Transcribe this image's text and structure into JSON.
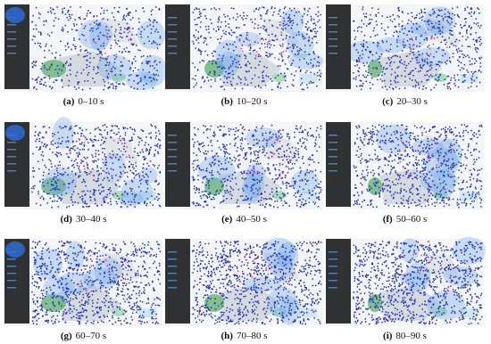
{
  "figure": {
    "panels": [
      {
        "label": "(a)",
        "caption": "0–10 s"
      },
      {
        "label": "(b)",
        "caption": "10–20 s"
      },
      {
        "label": "(c)",
        "caption": "20–30 s"
      },
      {
        "label": "(d)",
        "caption": "30–40 s"
      },
      {
        "label": "(e)",
        "caption": "40–50 s"
      },
      {
        "label": "(f)",
        "caption": "50–60 s"
      },
      {
        "label": "(g)",
        "caption": "60–70 s"
      },
      {
        "label": "(h)",
        "caption": "70–80 s"
      },
      {
        "label": "(i)",
        "caption": "80–90 s"
      }
    ]
  }
}
